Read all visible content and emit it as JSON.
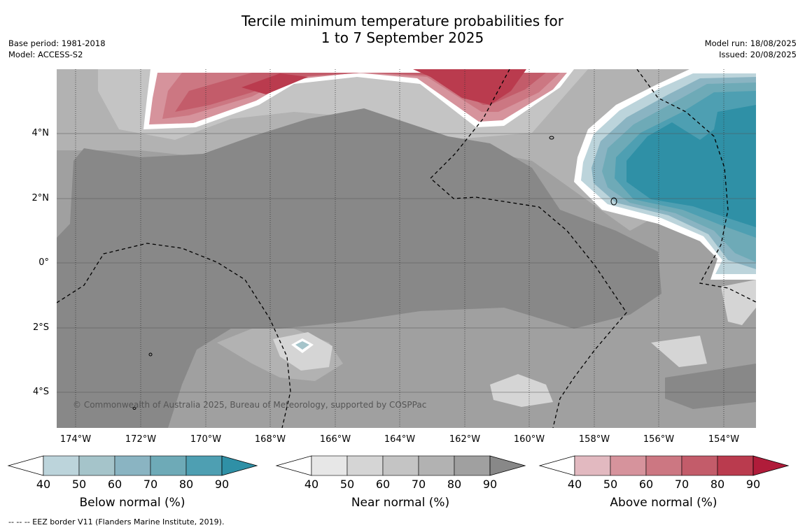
{
  "title_line1": "Tercile minimum temperature probabilities for",
  "title_line2": "1 to 7 September 2025",
  "base_period": "Base period: 1981-2018",
  "model": "Model: ACCESS-S2",
  "model_run": "Model run: 18/08/2025",
  "issued": "Issued: 20/08/2025",
  "copyright": "© Commonwealth of Australia 2025, Bureau of Meteorology, supported by COSPPac",
  "footnote": "--  --  -- EEZ border V11 (Flanders Marine Institute, 2019).",
  "lat_labels": [
    "4°N",
    "2°N",
    "0°",
    "2°S",
    "4°S"
  ],
  "lon_labels": [
    "174°W",
    "172°W",
    "170°W",
    "168°W",
    "166°W",
    "164°W",
    "162°W",
    "160°W",
    "158°W",
    "156°W",
    "154°W"
  ],
  "colorbars": [
    {
      "title": "Below normal (%)",
      "ticks": [
        "40",
        "50",
        "60",
        "70",
        "80",
        "90"
      ],
      "colors": [
        "#ffffff",
        "#bcd4db",
        "#a5c4ca",
        "#8ab4c2",
        "#6eaab7",
        "#4e9fb2",
        "#2f90a6"
      ]
    },
    {
      "title": "Near normal (%)",
      "ticks": [
        "40",
        "50",
        "60",
        "70",
        "80",
        "90"
      ],
      "colors": [
        "#ffffff",
        "#e7e7e7",
        "#d5d5d5",
        "#c4c4c4",
        "#b2b2b2",
        "#a0a0a0",
        "#888888"
      ]
    },
    {
      "title": "Above normal (%)",
      "ticks": [
        "40",
        "50",
        "60",
        "70",
        "80",
        "90"
      ],
      "colors": [
        "#ffffff",
        "#e2b9c0",
        "#d6939c",
        "#cc7782",
        "#c35c6a",
        "#ba3b4e",
        "#b01c3a"
      ]
    }
  ]
}
